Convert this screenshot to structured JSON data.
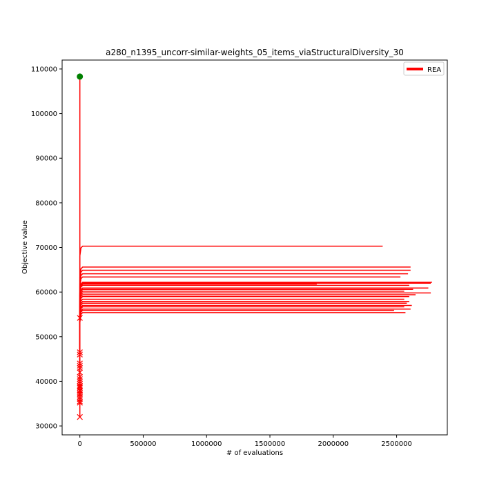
{
  "chart_data": {
    "type": "line",
    "title": "a280_n1395_uncorr-similar-weights_05_items_viaStructuralDiversity_30",
    "xlabel": "# of evaluations",
    "ylabel": "Objective value",
    "xlim": [
      -140000,
      2900000
    ],
    "ylim": [
      28000,
      112000
    ],
    "xticks": [
      0,
      500000,
      1000000,
      1500000,
      2000000,
      2500000
    ],
    "xtick_labels": [
      "0",
      "500000",
      "1000000",
      "1500000",
      "2000000",
      "2500000"
    ],
    "yticks": [
      30000,
      40000,
      50000,
      60000,
      70000,
      80000,
      90000,
      100000,
      110000
    ],
    "ytick_labels": [
      "30000",
      "40000",
      "50000",
      "60000",
      "70000",
      "80000",
      "90000",
      "100000",
      "110000"
    ],
    "legend": {
      "position": "top-right",
      "entries": [
        {
          "label": "REA",
          "color": "#ff0000"
        }
      ]
    },
    "colors": {
      "series": "#ff0000",
      "start_marker": "#008000"
    },
    "start_point": {
      "x": 0,
      "y": 108300
    },
    "series": [
      {
        "end_x": 2390000,
        "final": 70300,
        "start": 54200
      },
      {
        "end_x": 2610000,
        "final": 65600,
        "start": 46500
      },
      {
        "end_x": 2610000,
        "final": 64900,
        "start": 46000
      },
      {
        "end_x": 2590000,
        "final": 64100,
        "start": 44000
      },
      {
        "end_x": 2530000,
        "final": 63400,
        "start": 43500
      },
      {
        "end_x": 2780000,
        "final": 62200,
        "start": 43000
      },
      {
        "end_x": 2770000,
        "final": 62000,
        "start": 42000
      },
      {
        "end_x": 1870000,
        "final": 61800,
        "start": 41000
      },
      {
        "end_x": 2600000,
        "final": 61500,
        "start": 40500
      },
      {
        "end_x": 2750000,
        "final": 60900,
        "start": 40000
      },
      {
        "end_x": 2630000,
        "final": 60600,
        "start": 39500
      },
      {
        "end_x": 2560000,
        "final": 60200,
        "start": 39000
      },
      {
        "end_x": 2770000,
        "final": 59800,
        "start": 38800
      },
      {
        "end_x": 2650000,
        "final": 59400,
        "start": 38500
      },
      {
        "end_x": 2600000,
        "final": 59000,
        "start": 38000
      },
      {
        "end_x": 2560000,
        "final": 58400,
        "start": 37800
      },
      {
        "end_x": 2600000,
        "final": 57900,
        "start": 37300
      },
      {
        "end_x": 2580000,
        "final": 57500,
        "start": 37000
      },
      {
        "end_x": 2620000,
        "final": 57000,
        "start": 36500
      },
      {
        "end_x": 2560000,
        "final": 56700,
        "start": 36000
      },
      {
        "end_x": 2610000,
        "final": 56200,
        "start": 35500
      },
      {
        "end_x": 2480000,
        "final": 55900,
        "start": 35200
      },
      {
        "end_x": 2570000,
        "final": 55400,
        "start": 32000
      }
    ]
  }
}
